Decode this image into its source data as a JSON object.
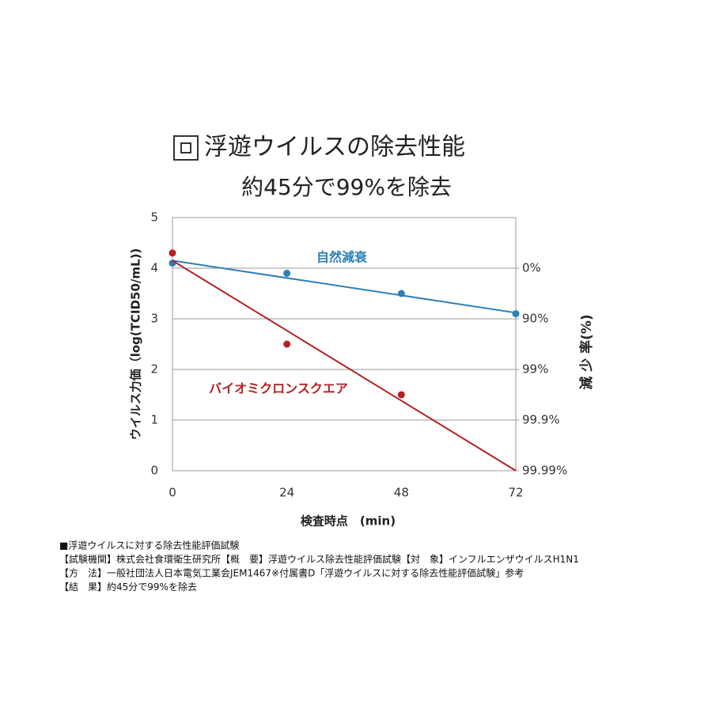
{
  "chart_data": {
    "type": "scatter",
    "title": "浮遊ウイルスの除去性能",
    "subtitle": "約45分で99%を除去",
    "x_label": "検査時点　(min)",
    "y_label": "ウイルス力価（log(TCID50/mL))",
    "y2_label": "減 少 率(%)",
    "xlim": [
      0,
      72
    ],
    "xticks": [
      0,
      24,
      48,
      72
    ],
    "ylim": [
      0,
      5
    ],
    "yticks": [
      0,
      1,
      2,
      3,
      4,
      5
    ],
    "y2lim": [
      0,
      5
    ],
    "y2ticks": [
      {
        "value": 4,
        "label": "0%"
      },
      {
        "value": 3,
        "label": "90%"
      },
      {
        "value": 2,
        "label": "99%"
      },
      {
        "value": 1,
        "label": "99.9%"
      },
      {
        "value": 0,
        "label": "99.99%"
      }
    ],
    "grid": true,
    "series": [
      {
        "name": "自然減衰",
        "color": "#2e7fb8",
        "x": [
          0,
          24,
          48,
          72
        ],
        "values": [
          4.1,
          3.9,
          3.5,
          3.1
        ],
        "trendline": {
          "x": [
            0,
            72
          ],
          "values": [
            4.15,
            3.12
          ]
        }
      },
      {
        "name": "バイオミクロンスクエア",
        "color": "#b52025",
        "x": [
          0,
          24,
          48
        ],
        "values": [
          4.3,
          2.5,
          1.5
        ],
        "trendline": {
          "x": [
            0,
            72
          ],
          "values": [
            4.15,
            0
          ]
        }
      }
    ]
  },
  "notes": [
    "■浮遊ウイルスに対する除去性能評価試験",
    "【試験機関】株式会社食環衛生研究所【概　要】浮遊ウイルス除去性能評価試験【対　象】インフルエンザウイルスH1N1",
    "【方　法】一般社団法人日本電気工業会JEM1467※付属書D「浮遊ウイルスに対する除去性能評価試験」参考",
    "【結　果】約45分で99%を除去"
  ]
}
